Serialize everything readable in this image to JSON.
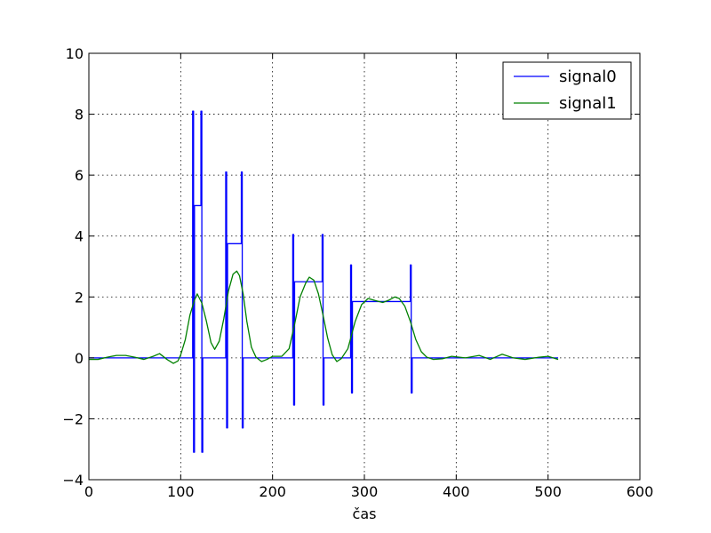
{
  "chart_data": {
    "type": "line",
    "xlabel": "čas",
    "ylabel": "",
    "title": "",
    "xlim": [
      0,
      600
    ],
    "ylim": [
      -4,
      10
    ],
    "xticks": [
      "0",
      "100",
      "200",
      "300",
      "400",
      "500",
      "600"
    ],
    "yticks": [
      "−4",
      "−2",
      "0",
      "2",
      "4",
      "6",
      "8",
      "10"
    ],
    "grid": true,
    "legend_position": "top-right",
    "series": [
      {
        "name": "signal0",
        "color": "#0000ff",
        "x": [
          0,
          113,
          113,
          114,
          114,
          115,
          115,
          116,
          116,
          122,
          122,
          123,
          123,
          124,
          124,
          125,
          125,
          149,
          149,
          150,
          150,
          151,
          151,
          152,
          152,
          166,
          166,
          167,
          167,
          168,
          168,
          169,
          169,
          222,
          222,
          223,
          223,
          224,
          224,
          225,
          225,
          254,
          254,
          255,
          255,
          256,
          256,
          257,
          257,
          285,
          285,
          286,
          286,
          287,
          287,
          288,
          288,
          350,
          350,
          351,
          351,
          352,
          352,
          353,
          353,
          511
        ],
        "y": [
          0,
          0,
          8.1,
          8.1,
          -3.1,
          -3.1,
          5,
          5,
          5,
          5,
          8.1,
          8.1,
          -3.1,
          -3.1,
          0,
          0,
          0,
          0,
          6.1,
          6.1,
          -2.3,
          -2.3,
          3.75,
          3.75,
          3.75,
          3.75,
          6.1,
          6.1,
          -2.3,
          -2.3,
          0,
          0,
          0,
          0,
          4.05,
          4.05,
          -1.55,
          -1.55,
          2.5,
          2.5,
          2.5,
          2.5,
          4.05,
          4.05,
          -1.55,
          -1.55,
          0,
          0,
          0,
          0,
          3.05,
          3.05,
          -1.15,
          -1.15,
          1.85,
          1.85,
          1.85,
          1.85,
          3.05,
          3.05,
          -1.15,
          -1.15,
          0,
          0,
          0,
          0
        ]
      },
      {
        "name": "signal1",
        "color": "#008000",
        "x": [
          0,
          10,
          20,
          30,
          40,
          50,
          60,
          70,
          77,
          85,
          92,
          97,
          100,
          105,
          110,
          115,
          118,
          123,
          128,
          133,
          137,
          142,
          147,
          152,
          157,
          161,
          164,
          168,
          172,
          177,
          182,
          188,
          194,
          200,
          210,
          218,
          224,
          230,
          236,
          240,
          245,
          250,
          255,
          260,
          265,
          270,
          275,
          282,
          290,
          297,
          304,
          312,
          320,
          327,
          333,
          338,
          344,
          350,
          356,
          362,
          368,
          375,
          385,
          395,
          410,
          425,
          437,
          450,
          462,
          475,
          490,
          500,
          511
        ],
        "y": [
          -0.05,
          -0.05,
          0.02,
          0.08,
          0.08,
          0.02,
          -0.05,
          0.05,
          0.14,
          -0.05,
          -0.18,
          -0.1,
          0.1,
          0.6,
          1.4,
          1.9,
          2.1,
          1.8,
          1.2,
          0.5,
          0.28,
          0.55,
          1.3,
          2.2,
          2.75,
          2.85,
          2.7,
          2.1,
          1.2,
          0.35,
          0.02,
          -0.12,
          -0.05,
          0.05,
          0.05,
          0.3,
          1.1,
          2.0,
          2.45,
          2.65,
          2.55,
          2.1,
          1.4,
          0.65,
          0.1,
          -0.12,
          -0.02,
          0.3,
          1.2,
          1.75,
          1.95,
          1.88,
          1.82,
          1.9,
          2.0,
          1.95,
          1.7,
          1.2,
          0.6,
          0.2,
          0.02,
          -0.05,
          -0.03,
          0.05,
          0.0,
          0.08,
          -0.05,
          0.12,
          0.0,
          -0.05,
          0.02,
          0.05,
          -0.05
        ]
      }
    ]
  }
}
